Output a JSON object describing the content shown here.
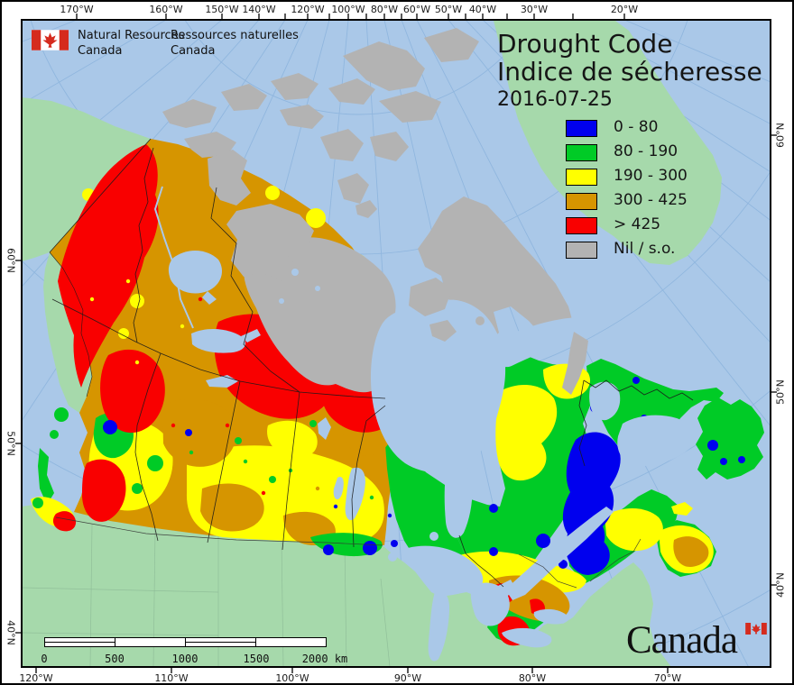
{
  "branding": {
    "dept_en_line1": "Natural Resources",
    "dept_en_line2": "Canada",
    "dept_fr_line1": "Ressources naturelles",
    "dept_fr_line2": "Canada",
    "wordmark": "Canada"
  },
  "title": {
    "line1": "Drought Code",
    "line2": "Indice de sécheresse",
    "date": "2016-07-25"
  },
  "legend": {
    "items": [
      {
        "label": "0 - 80",
        "color": "#0000ee"
      },
      {
        "label": "80 - 190",
        "color": "#00cb26"
      },
      {
        "label": "190 - 300",
        "color": "#ffff00"
      },
      {
        "label": "300 - 425",
        "color": "#d69500"
      },
      {
        "label": "> 425",
        "color": "#f90000"
      },
      {
        "label": "Nil / s.o.",
        "color": "#b3b3b3"
      }
    ]
  },
  "scalebar": {
    "ticks": [
      "0",
      "500",
      "1000",
      "1500",
      "2000"
    ],
    "unit": "km"
  },
  "axes": {
    "top": [
      "170°W",
      "160°W",
      "150°W",
      "140°W",
      "120°W",
      "100°W",
      "80°W",
      "60°W",
      "50°W",
      "40°W",
      "30°W",
      "20°W"
    ],
    "bottom": [
      "120°W",
      "110°W",
      "100°W",
      "90°W",
      "80°W",
      "70°W"
    ],
    "left": [
      "60°N",
      "50°N",
      "40°N"
    ],
    "right": [
      "60°N",
      "50°N",
      "40°N"
    ]
  },
  "map_colors": {
    "ocean": "#aac8e8",
    "graticule": "#8fb6de",
    "foreign_land": "#a6d9ab",
    "nil": "#b3b3b3"
  }
}
